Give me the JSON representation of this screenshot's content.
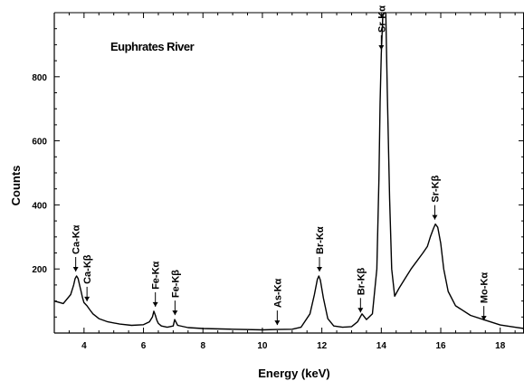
{
  "chart_data": {
    "type": "line",
    "title": "Euphrates River",
    "xlabel": "Energy (keV)",
    "ylabel": "Counts",
    "xlim": [
      3,
      18.8
    ],
    "ylim": [
      0,
      1000
    ],
    "xticks": [
      4,
      6,
      8,
      10,
      12,
      14,
      16,
      18
    ],
    "yticks": [
      200,
      400,
      600,
      800
    ],
    "grid": false,
    "colors": {
      "line": "#000000",
      "axis": "#000000"
    },
    "series": [
      {
        "x": [
          3.0,
          3.3,
          3.55,
          3.65,
          3.7,
          3.75,
          3.8,
          3.85,
          3.9,
          3.95,
          4.0,
          4.1,
          4.2,
          4.3,
          4.5,
          4.8,
          5.2,
          5.6,
          6.0,
          6.2,
          6.3,
          6.35,
          6.4,
          6.45,
          6.5,
          6.6,
          6.8,
          7.0,
          7.05,
          7.15,
          7.5,
          8.0,
          9.0,
          10.0,
          10.5,
          11.0,
          11.3,
          11.6,
          11.75,
          11.85,
          11.9,
          11.95,
          12.05,
          12.2,
          12.4,
          12.7,
          13.0,
          13.2,
          13.35,
          13.5,
          13.7,
          13.85,
          13.92,
          13.96,
          14.0,
          14.05,
          14.1,
          14.15,
          14.2,
          14.28,
          14.35,
          14.45,
          14.6,
          14.8,
          15.0,
          15.2,
          15.4,
          15.55,
          15.65,
          15.75,
          15.82,
          15.9,
          16.0,
          16.1,
          16.25,
          16.5,
          17.0,
          17.5,
          18.0,
          18.5,
          18.8
        ],
        "y": [
          100,
          92,
          120,
          150,
          170,
          178,
          170,
          150,
          130,
          110,
          95,
          85,
          72,
          60,
          45,
          35,
          28,
          24,
          26,
          35,
          50,
          68,
          55,
          40,
          30,
          22,
          18,
          22,
          42,
          24,
          17,
          14,
          12,
          10,
          11,
          12,
          18,
          60,
          120,
          168,
          178,
          165,
          110,
          45,
          22,
          18,
          20,
          35,
          60,
          42,
          60,
          200,
          480,
          720,
          870,
          990,
          1000,
          1000,
          760,
          420,
          200,
          115,
          140,
          170,
          200,
          225,
          250,
          270,
          300,
          325,
          340,
          330,
          280,
          200,
          130,
          85,
          55,
          40,
          25,
          18,
          14
        ]
      }
    ],
    "annotations": [
      {
        "text": "Ca-Kα",
        "x": 3.72,
        "y": 178
      },
      {
        "text": "Ca-Kβ",
        "x": 4.1,
        "y": 85
      },
      {
        "text": "Fe-Kα",
        "x": 6.4,
        "y": 68
      },
      {
        "text": "Fe-Kβ",
        "x": 7.06,
        "y": 42
      },
      {
        "text": "As-Kα",
        "x": 10.5,
        "y": 11
      },
      {
        "text": "Br-Kα",
        "x": 11.92,
        "y": 178
      },
      {
        "text": "Br-Kβ",
        "x": 13.3,
        "y": 50
      },
      {
        "text": "Sr-Kα",
        "x": 14.0,
        "y": 870
      },
      {
        "text": "Sr-Kβ",
        "x": 15.8,
        "y": 340
      },
      {
        "text": "Mo-Kα",
        "x": 17.45,
        "y": 25
      }
    ]
  }
}
